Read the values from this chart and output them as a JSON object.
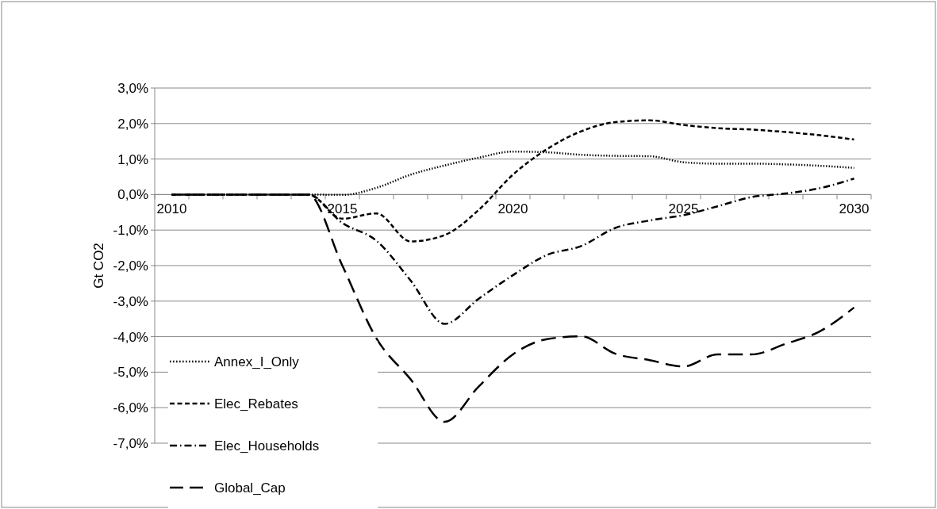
{
  "chart_data": {
    "type": "line",
    "ylabel": "Gt CO2",
    "categories": [
      "2010",
      null,
      null,
      null,
      null,
      "2015",
      null,
      null,
      null,
      null,
      "2020",
      null,
      null,
      null,
      null,
      "2025",
      null,
      null,
      null,
      null,
      "2030"
    ],
    "series": [
      {
        "name": "Annex_I_Only",
        "color": "#000000",
        "line_style": "dotted",
        "values": [
          0,
          0,
          0,
          0,
          0,
          -0.01,
          0.19,
          0.56,
          0.82,
          1.04,
          1.21,
          1.19,
          1.12,
          1.09,
          1.08,
          0.91,
          0.87,
          0.87,
          0.85,
          0.81,
          0.75
        ]
      },
      {
        "name": "Elec_Rebates",
        "color": "#000000",
        "line_style": "dashed",
        "values": [
          0,
          0,
          0,
          0,
          0,
          -0.68,
          -0.53,
          -1.32,
          -1.14,
          -0.43,
          0.56,
          1.28,
          1.78,
          2.04,
          2.09,
          1.96,
          1.87,
          1.83,
          1.76,
          1.67,
          1.55
        ]
      },
      {
        "name": "Elec_Households",
        "color": "#000000",
        "line_style": "dashdot",
        "values": [
          0,
          0,
          0,
          0,
          0,
          -0.8,
          -1.3,
          -2.42,
          -3.64,
          -2.93,
          -2.27,
          -1.7,
          -1.45,
          -0.94,
          -0.73,
          -0.58,
          -0.33,
          -0.07,
          0.03,
          0.18,
          0.45
        ]
      },
      {
        "name": "Global_Cap",
        "color": "#000000",
        "line_style": "longdash",
        "values": [
          0,
          0,
          0,
          0,
          0,
          -2.0,
          -4.05,
          -5.2,
          -6.4,
          -5.4,
          -4.5,
          -4.07,
          -3.99,
          -4.48,
          -4.66,
          -4.84,
          -4.5,
          -4.5,
          -4.2,
          -3.85,
          -3.18
        ]
      }
    ],
    "ylim": [
      -7,
      3
    ],
    "yticks": [
      {
        "value": -7,
        "label": "-7,0%"
      },
      {
        "value": -6,
        "label": "-6,0%"
      },
      {
        "value": -5,
        "label": "-5,0%"
      },
      {
        "value": -4,
        "label": "-4,0%"
      },
      {
        "value": -3,
        "label": "-3,0%"
      },
      {
        "value": -2,
        "label": "-2,0%"
      },
      {
        "value": -1,
        "label": "-1,0%"
      },
      {
        "value": 0,
        "label": "0,0%"
      },
      {
        "value": 1,
        "label": "1,0%"
      },
      {
        "value": 2,
        "label": "2,0%"
      },
      {
        "value": 3,
        "label": "3,0%"
      }
    ],
    "grid": "y",
    "legend": "bottom left",
    "marker": "none"
  }
}
